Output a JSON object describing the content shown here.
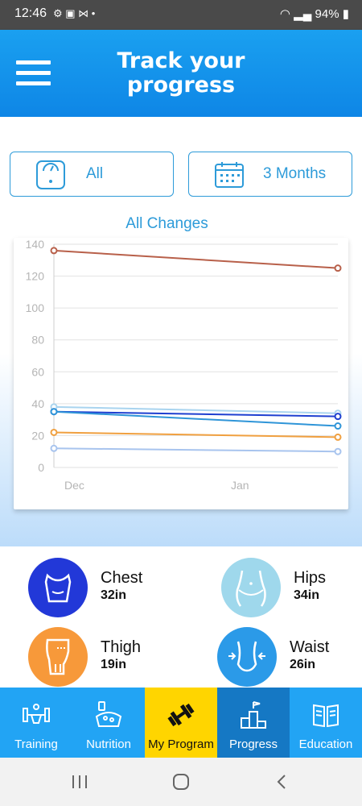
{
  "status_bar": {
    "time": "12:46",
    "battery": "94%"
  },
  "header": {
    "title_line1": "Track your",
    "title_line2": "progress"
  },
  "filters": {
    "category": "All",
    "period": "3 Months"
  },
  "chart_data": {
    "type": "line",
    "title": "All Changes",
    "categories": [
      "Dec",
      "Jan"
    ],
    "x_tick_labels": [
      "Dec",
      "Jan"
    ],
    "ylim": [
      0,
      140
    ],
    "y_ticks": [
      0,
      20,
      40,
      60,
      80,
      100,
      120,
      140
    ],
    "grid": true,
    "series": [
      {
        "color": "#b8604a",
        "values": [
          136,
          125
        ]
      },
      {
        "color": "#a9d4ef",
        "values": [
          38,
          34
        ]
      },
      {
        "color": "#1e3fd0",
        "values": [
          35,
          32
        ]
      },
      {
        "color": "#2f95d8",
        "values": [
          35,
          26
        ]
      },
      {
        "color": "#f0a040",
        "values": [
          22,
          19
        ]
      },
      {
        "color": "#a8c4ee",
        "values": [
          12,
          10
        ]
      }
    ]
  },
  "measurements": [
    {
      "name": "Chest",
      "value": "32in",
      "icon": "chest-icon",
      "color": "#2238d8"
    },
    {
      "name": "Hips",
      "value": "34in",
      "icon": "hips-icon",
      "color": "#9fd8ec"
    },
    {
      "name": "Thigh",
      "value": "19in",
      "icon": "thigh-icon",
      "color": "#f7993a"
    },
    {
      "name": "Waist",
      "value": "26in",
      "icon": "waist-icon",
      "color": "#2b9ae8"
    }
  ],
  "nav": [
    {
      "label": "Training",
      "icon": "dumbbell-figure-icon"
    },
    {
      "label": "Nutrition",
      "icon": "food-basket-icon"
    },
    {
      "label": "My Program",
      "icon": "dumbbell-icon"
    },
    {
      "label": "Progress",
      "icon": "podium-icon"
    },
    {
      "label": "Education",
      "icon": "book-icon"
    }
  ]
}
